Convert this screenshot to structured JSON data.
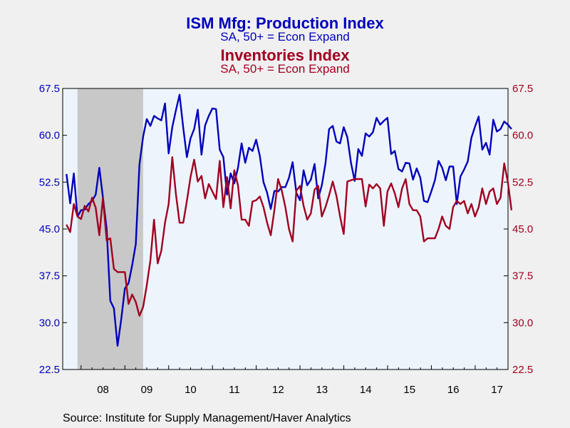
{
  "colors": {
    "production": "#0000bb",
    "inventories": "#a00020",
    "recession": "#c8c8c8",
    "plot_bg": "#eef4fc",
    "page_bg": "#f0f0f0"
  },
  "source": "Source:  Institute for Supply Management/Haver Analytics",
  "chart_data": {
    "type": "line",
    "title": "ISM Mfg: Production Index",
    "subtitle": "SA, 50+ = Econ Expand",
    "title2": "Inventories Index",
    "subtitle2": "SA, 50+ = Econ Expand",
    "ylim": [
      22.5,
      67.5
    ],
    "yticks": [
      "22.5",
      "30.0",
      "37.5",
      "45.0",
      "52.5",
      "60.0",
      "67.5"
    ],
    "xlim": [
      2007.58,
      2017.75
    ],
    "xtick_labels": [
      "08",
      "09",
      "10",
      "11",
      "12",
      "13",
      "14",
      "15",
      "16",
      "17"
    ],
    "recession": [
      2007.917,
      2009.417
    ],
    "grid": false,
    "start": 2007.667,
    "step": 0.0833,
    "series": [
      {
        "name": "ISM Mfg: Production Index",
        "axis": "left",
        "values": [
          53.8,
          49.1,
          53.9,
          47.0,
          48.0,
          48.1,
          49.0,
          49.5,
          50.5,
          54.8,
          50.0,
          45.0,
          33.5,
          32.3,
          26.3,
          30.5,
          35.5,
          36.3,
          39.2,
          42.6,
          55.3,
          59.8,
          62.6,
          61.5,
          63.1,
          62.7,
          62.4,
          65.1,
          57.1,
          61.3,
          64.0,
          66.5,
          61.2,
          56.5,
          59.5,
          61.0,
          64.1,
          56.9,
          61.6,
          63.1,
          64.3,
          64.2,
          57.7,
          56.5,
          50.5,
          53.9,
          52.3,
          54.8,
          58.7,
          55.6,
          58.0,
          57.5,
          59.3,
          56.7,
          52.5,
          50.8,
          48.2,
          51.1,
          51.0,
          51.7,
          51.7,
          53.2,
          55.7,
          50.8,
          49.6,
          54.4,
          52.0,
          52.9,
          55.4,
          49.9,
          52.0,
          55.5,
          61.0,
          61.5,
          59.0,
          58.7,
          61.3,
          59.7,
          55.6,
          52.7,
          57.8,
          56.7,
          60.3,
          59.8,
          60.5,
          62.8,
          61.7,
          62.3,
          62.8,
          57.0,
          57.5,
          54.6,
          54.2,
          55.6,
          55.5,
          52.9,
          54.7,
          53.2,
          49.5,
          49.3,
          51.0,
          52.8,
          55.9,
          54.8,
          52.8,
          55.0,
          55.0,
          49.0,
          53.4,
          54.5,
          55.8,
          59.6,
          61.4,
          63.0,
          57.7,
          58.8,
          56.9,
          62.5,
          60.6,
          61.0,
          62.2,
          61.7,
          61.0
        ]
      },
      {
        "name": "Inventories Index",
        "axis": "right",
        "values": [
          45.7,
          44.5,
          49.0,
          47.0,
          46.6,
          48.7,
          47.8,
          50.0,
          48.4,
          44.0,
          50.0,
          43.2,
          43.5,
          38.6,
          38.1,
          38.1,
          38.1,
          33.0,
          34.5,
          33.3,
          31.1,
          32.5,
          36.0,
          40.0,
          46.5,
          39.5,
          41.5,
          46.0,
          49.0,
          56.5,
          50.6,
          46.0,
          46.0,
          49.5,
          53.3,
          56.1,
          52.6,
          53.5,
          49.9,
          52.2,
          51.0,
          49.8,
          55.9,
          48.5,
          53.3,
          48.3,
          54.4,
          52.0,
          46.5,
          46.5,
          45.5,
          49.4,
          49.6,
          50.2,
          48.5,
          46.0,
          44.0,
          48.0,
          53.0,
          51.2,
          48.5,
          45.0,
          43.0,
          51.1,
          51.9,
          48.7,
          46.5,
          47.5,
          51.3,
          51.9,
          47.0,
          48.5,
          50.4,
          52.6,
          50.3,
          47.0,
          44.2,
          52.6,
          52.8,
          53.0,
          53.0,
          53.0,
          48.6,
          52.1,
          51.5,
          52.2,
          51.5,
          45.5,
          51.0,
          52.3,
          50.7,
          48.5,
          51.5,
          53.0,
          49.0,
          48.0,
          48.0,
          47.0,
          43.0,
          43.5,
          43.5,
          43.5,
          45.0,
          47.0,
          45.5,
          45.0,
          48.5,
          49.5,
          49.0,
          49.5,
          47.5,
          49.0,
          47.0,
          48.5,
          51.5,
          49.0,
          51.0,
          51.5,
          49.0,
          50.0,
          55.5,
          52.5,
          48.0
        ]
      }
    ]
  }
}
